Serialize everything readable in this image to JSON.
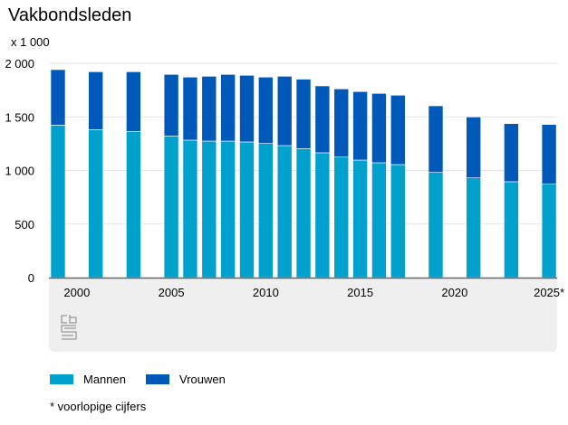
{
  "chart_data": {
    "type": "bar",
    "stacked": true,
    "title": "Vakbondsleden",
    "unit_label": "x 1 000",
    "xlabel": "",
    "ylabel": "",
    "ylim": [
      0,
      2000
    ],
    "yticks": [
      0,
      500,
      1000,
      1500,
      2000
    ],
    "ytick_labels": [
      "0",
      "500",
      "1 000",
      "1 500",
      "2 000"
    ],
    "xtick_years": [
      2000,
      2005,
      2010,
      2015,
      2020,
      2025
    ],
    "xtick_labels": [
      "2000",
      "2005",
      "2010",
      "2015",
      "2020",
      "2025*"
    ],
    "categories": [
      1999,
      2001,
      2003,
      2005,
      2006,
      2007,
      2008,
      2009,
      2010,
      2011,
      2012,
      2013,
      2014,
      2015,
      2016,
      2017,
      2019,
      2021,
      2023,
      2025
    ],
    "series": [
      {
        "name": "Mannen",
        "color": "#00a1cd",
        "values": [
          1423,
          1381,
          1364,
          1322,
          1283,
          1274,
          1274,
          1266,
          1252,
          1232,
          1204,
          1165,
          1125,
          1097,
          1072,
          1055,
          982,
          931,
          895,
          872
        ]
      },
      {
        "name": "Vrouwen",
        "color": "#0058b8",
        "values": [
          518,
          540,
          557,
          574,
          588,
          605,
          622,
          622,
          619,
          647,
          648,
          624,
          636,
          639,
          647,
          647,
          621,
          568,
          542,
          557
        ]
      }
    ],
    "grid": true,
    "legend_position": "bottom-left",
    "footnote": "* voorlopige cijfers"
  }
}
